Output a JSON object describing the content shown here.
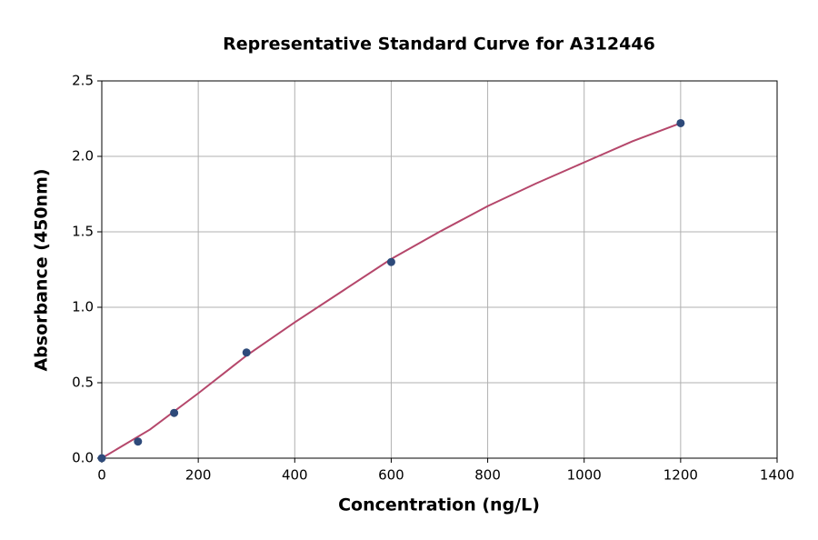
{
  "chart_data": {
    "type": "scatter",
    "title": "Representative Standard Curve for A312446",
    "x_label": "Concentration (ng/L)",
    "y_label": "Absorbance (450nm)",
    "xlim": [
      0,
      1400
    ],
    "xticks": [
      0,
      200,
      400,
      600,
      800,
      1000,
      1200,
      1400
    ],
    "ylim": [
      0,
      2.5
    ],
    "yticks": [
      {
        "value": 0,
        "label": "0.0"
      },
      0.5,
      {
        "value": 1,
        "label": "1.0"
      },
      1.5,
      {
        "value": 2,
        "label": "2.0"
      },
      2.5
    ],
    "grid": true,
    "series": [
      {
        "type": "line",
        "color": "#b5476b",
        "x": [
          0,
          100,
          200,
          300,
          400,
          500,
          600,
          700,
          800,
          900,
          1000,
          1100,
          1200
        ],
        "values": [
          0,
          0.19,
          0.43,
          0.68,
          0.9,
          1.11,
          1.32,
          1.5,
          1.67,
          1.82,
          1.96,
          2.1,
          2.22
        ]
      },
      {
        "type": "scatter",
        "color": "#2e4a7a",
        "x": [
          0,
          75,
          150,
          300,
          600,
          1200
        ],
        "values": [
          0,
          0.11,
          0.3,
          0.7,
          1.3,
          2.22
        ]
      }
    ]
  }
}
